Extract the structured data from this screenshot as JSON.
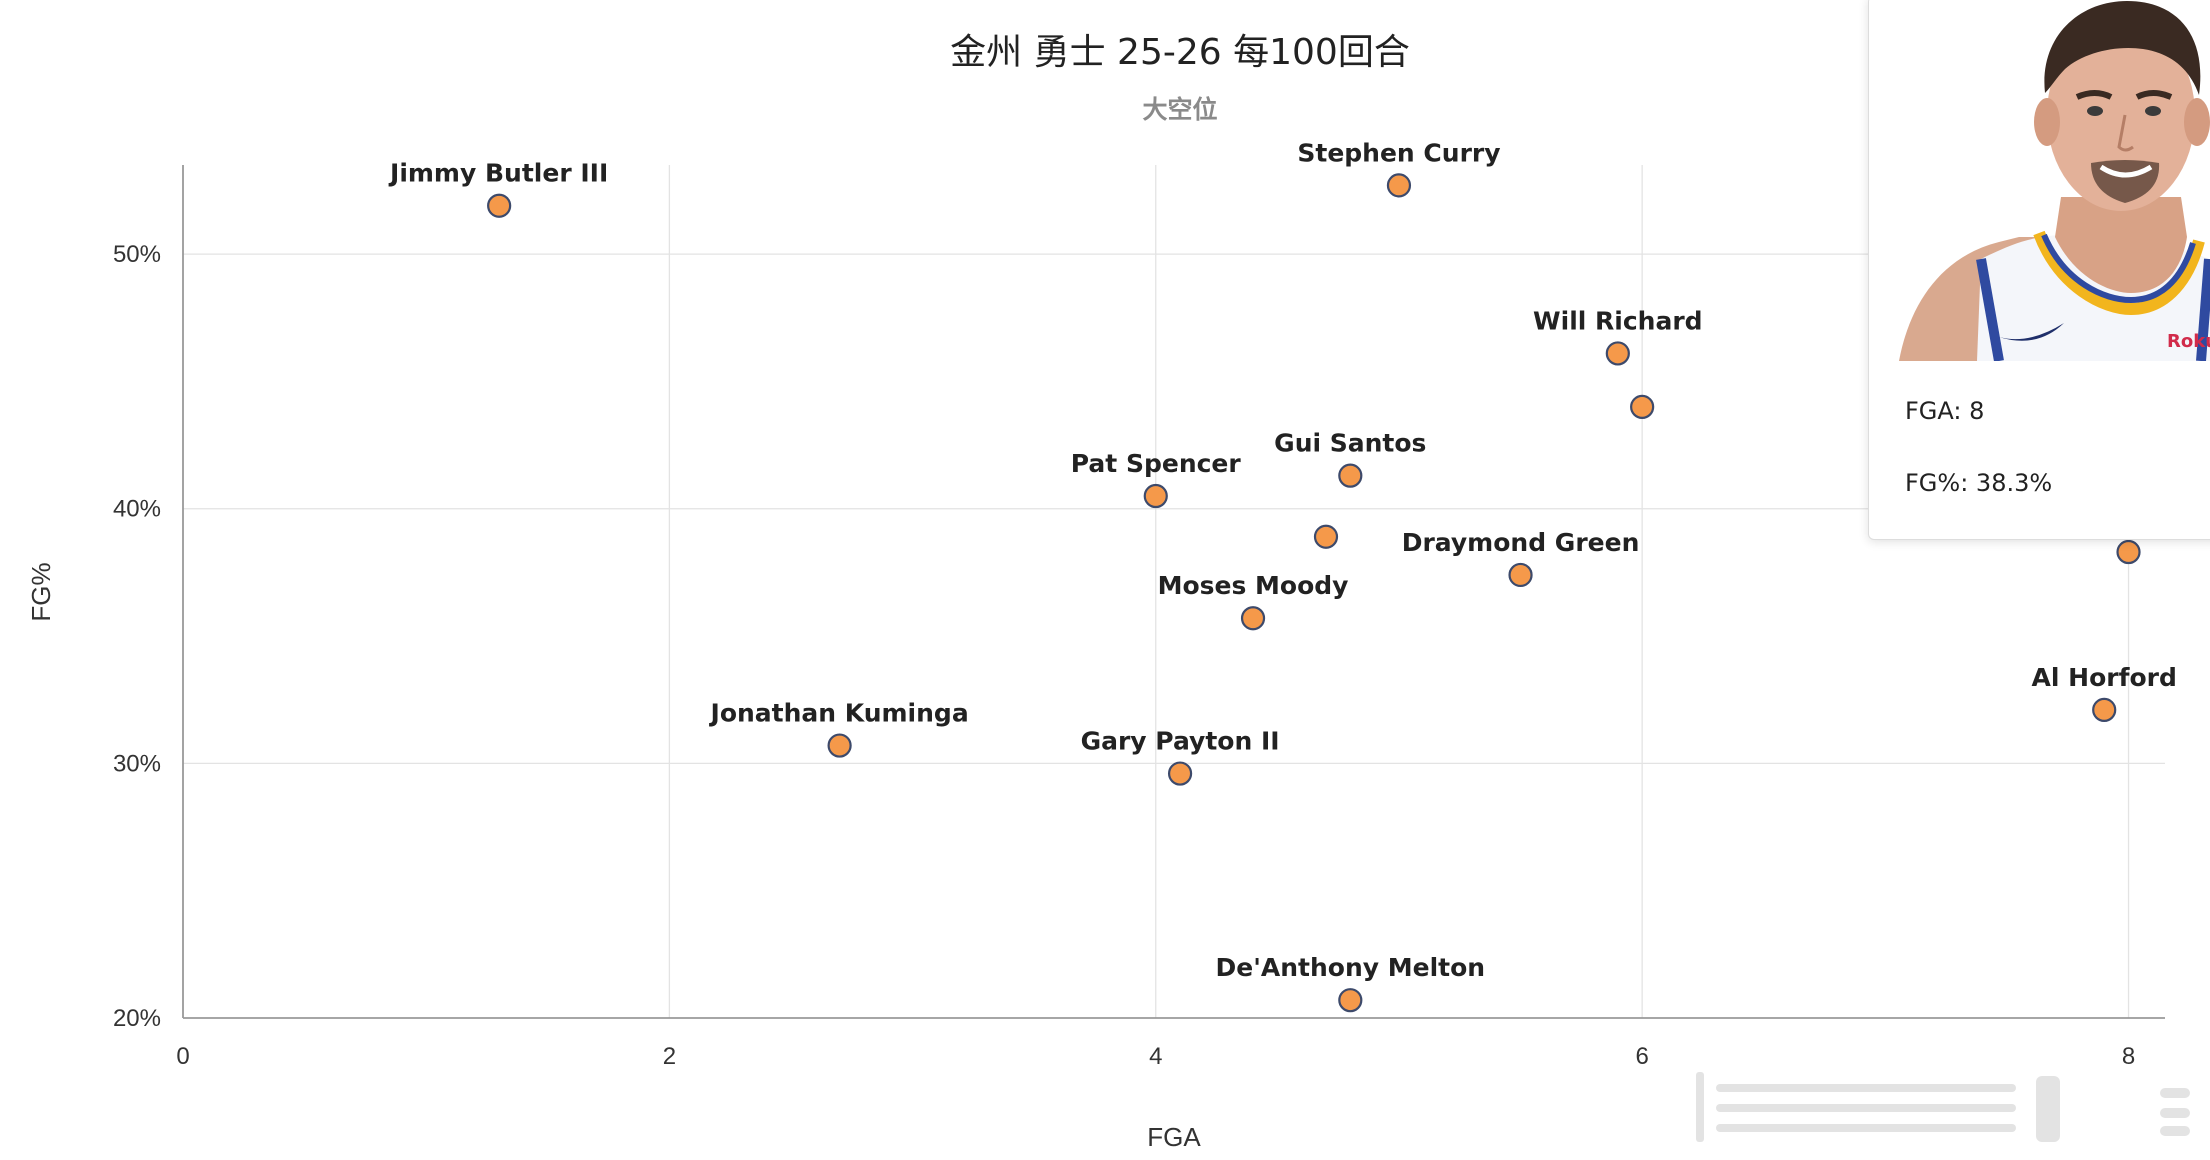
{
  "chart_data": {
    "type": "scatter",
    "title": "金州 勇士 25-26  每100回合",
    "subtitle": "大空位",
    "xlabel": "FGA",
    "ylabel": "FG%",
    "xlim": [
      0,
      8.15
    ],
    "ylim": [
      20,
      53.5
    ],
    "x_ticks": [
      0,
      2,
      4,
      6,
      8
    ],
    "y_ticks": [
      20,
      30,
      40,
      50
    ],
    "x_tick_labels": [
      "0",
      "2",
      "4",
      "6",
      "8"
    ],
    "y_tick_labels": [
      "20%",
      "30%",
      "40%",
      "50%"
    ],
    "grid": true,
    "marker_color": "#f5994a",
    "marker_edge_color": "#3d4a6b",
    "points": [
      {
        "label": "Jimmy Butler III",
        "x": 1.3,
        "y": 51.9
      },
      {
        "label": "Stephen Curry",
        "x": 5.0,
        "y": 52.7
      },
      {
        "label": "Will Richard",
        "x": 5.9,
        "y": 46.1
      },
      {
        "label": "",
        "x": 6.0,
        "y": 44.0
      },
      {
        "label": "Gui Santos",
        "x": 4.8,
        "y": 41.3
      },
      {
        "label": "Pat Spencer",
        "x": 4.0,
        "y": 40.5
      },
      {
        "label": "",
        "x": 4.7,
        "y": 38.9
      },
      {
        "label": "Draymond Green",
        "x": 5.5,
        "y": 37.4
      },
      {
        "label": "Moses Moody",
        "x": 4.4,
        "y": 35.7
      },
      {
        "label": "",
        "x": 8.0,
        "y": 38.3
      },
      {
        "label": "Al Horford",
        "x": 7.9,
        "y": 32.1
      },
      {
        "label": "Jonathan Kuminga",
        "x": 2.7,
        "y": 30.7
      },
      {
        "label": "Gary Payton II",
        "x": 4.1,
        "y": 29.6
      },
      {
        "label": "De'Anthony Melton",
        "x": 4.8,
        "y": 20.7
      }
    ]
  },
  "tooltip": {
    "fga_text": "FGA: 8",
    "fg_text": "FG%: 38.3%",
    "jersey_sponsor": "Roku"
  }
}
